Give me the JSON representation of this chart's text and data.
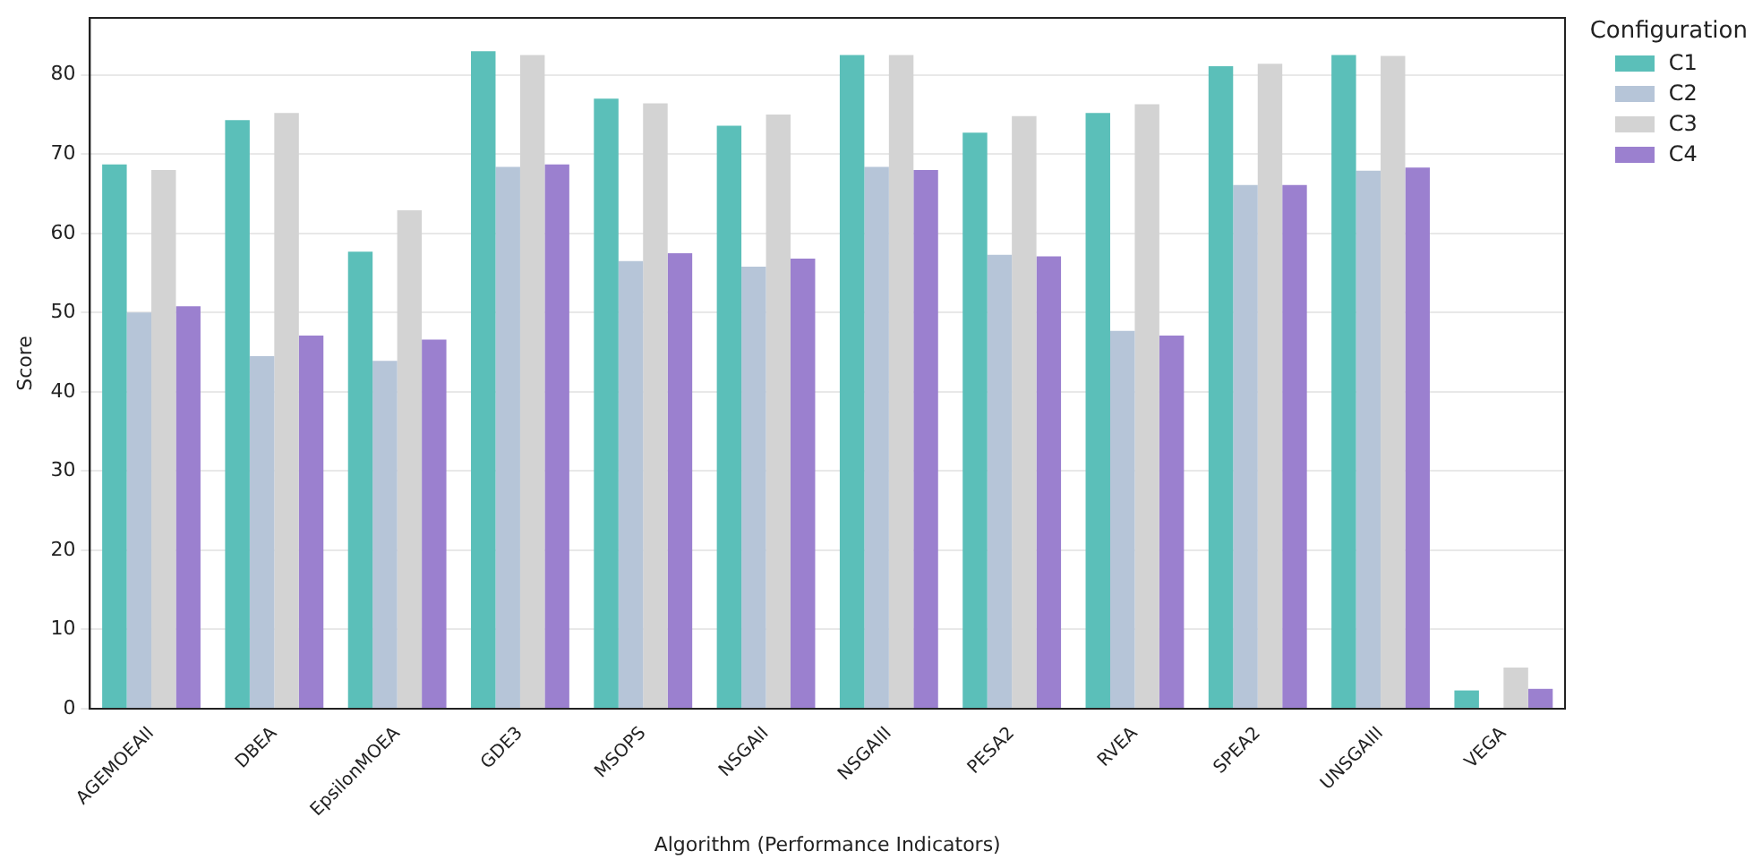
{
  "chart_data": {
    "type": "bar",
    "xlabel": "Algorithm (Performance Indicators)",
    "ylabel": "Score",
    "legend_title": "Configuration",
    "categories": [
      "AGEMOEAII",
      "DBEA",
      "EpsilonMOEA",
      "GDE3",
      "MSOPS",
      "NSGAII",
      "NSGAIII",
      "PESA2",
      "RVEA",
      "SPEA2",
      "UNSGAIII",
      "VEGA"
    ],
    "series": [
      {
        "name": "C1",
        "color": "#5bbfb9",
        "values": [
          68.7,
          74.3,
          57.7,
          83.0,
          77.0,
          73.6,
          82.5,
          72.7,
          75.2,
          81.1,
          82.5,
          2.3
        ]
      },
      {
        "name": "C2",
        "color": "#b6c5d8",
        "values": [
          50.0,
          44.5,
          43.9,
          68.4,
          56.5,
          55.8,
          68.4,
          57.3,
          47.7,
          66.1,
          67.9,
          0
        ]
      },
      {
        "name": "C3",
        "color": "#d3d3d3",
        "values": [
          68.0,
          75.2,
          62.9,
          82.5,
          76.4,
          75.0,
          82.5,
          74.8,
          76.3,
          81.4,
          82.4,
          5.2
        ]
      },
      {
        "name": "C4",
        "color": "#9b80cf",
        "values": [
          50.8,
          47.1,
          46.6,
          68.7,
          57.5,
          56.8,
          68.0,
          57.1,
          47.1,
          66.1,
          68.3,
          2.5
        ]
      }
    ],
    "ylim": [
      0,
      87.2
    ],
    "yticks": [
      0,
      10,
      20,
      30,
      40,
      50,
      60,
      70,
      80
    ],
    "grid": "y",
    "legend": "top right"
  }
}
